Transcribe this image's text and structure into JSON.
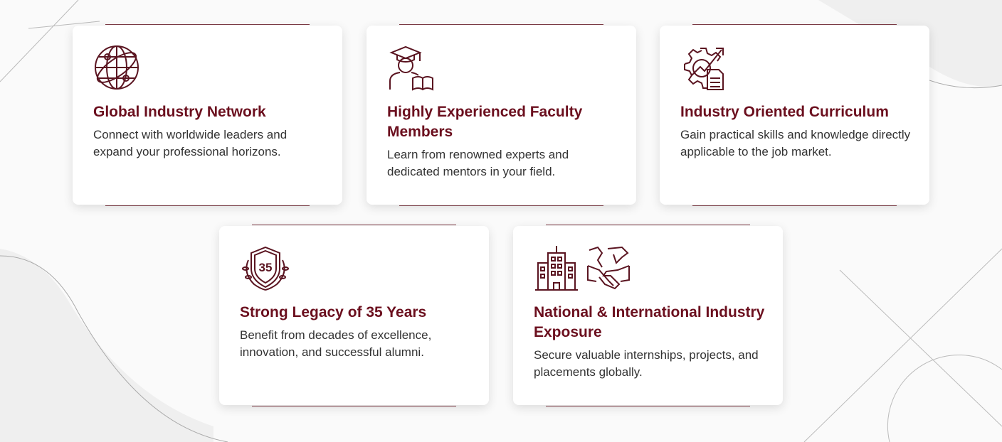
{
  "accent_color": "#6b0f1e",
  "cards": [
    {
      "icon": "globe-network-icon",
      "title": "Global Industry Network",
      "desc": "Connect with worldwide leaders and expand your professional horizons."
    },
    {
      "icon": "graduate-reading-icon",
      "title": "Highly Experienced Faculty Members",
      "desc": "Learn from renowned experts and dedicated mentors in your field."
    },
    {
      "icon": "gear-growth-document-icon",
      "title": "Industry Oriented Curriculum",
      "desc": "Gain practical skills and knowledge directly applicable to the job market."
    },
    {
      "icon": "shield-laurel-icon",
      "badge": "35",
      "title": "Strong Legacy of 35 Years",
      "desc": "Benefit from decades of excellence, innovation, and successful alumni."
    },
    {
      "icon": "building-handshake-icon",
      "title": "National & International Industry Exposure",
      "desc": "Secure valuable internships, projects, and placements globally."
    }
  ]
}
